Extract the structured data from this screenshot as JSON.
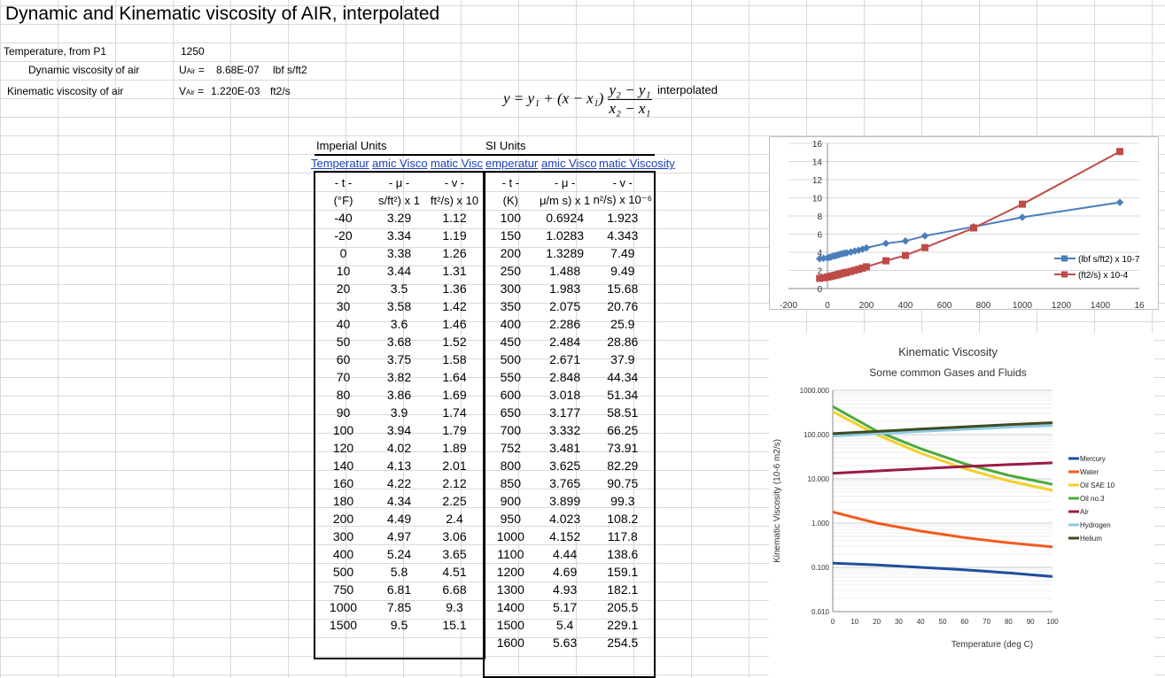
{
  "title": "Dynamic and Kinematic viscosity of AIR, interpolated",
  "inputs": {
    "temperature_label": "Temperature, from P1",
    "temperature_value": "1250",
    "dynamic_label": "Dynamic viscosity of air",
    "dynamic_symbol": "U",
    "dynamic_sub": "Air",
    "dynamic_value": "8.68E-07",
    "dynamic_unit": "lbf s/ft2",
    "kinematic_label": "Kinematic viscosity of air",
    "kinematic_symbol": "V",
    "kinematic_sub": "Air",
    "kinematic_value": "1.220E-03",
    "kinematic_unit": "ft2/s"
  },
  "formula": {
    "lhs": "y = y₁ + (x − x₁)",
    "num": "y₂ − y₁",
    "den": "x₂ − x₁",
    "note": "interpolated"
  },
  "imperial": {
    "title": "Imperial Units",
    "links": [
      "Temperatur",
      "amic Visco",
      "matic Visc"
    ],
    "symbols": [
      "- t -",
      "- μ -",
      "- v -"
    ],
    "units": [
      "(°F)",
      "s/ft²) x 1",
      "ft²/s) x 10"
    ],
    "rows": [
      [
        "-40",
        "3.29",
        "1.12"
      ],
      [
        "-20",
        "3.34",
        "1.19"
      ],
      [
        "0",
        "3.38",
        "1.26"
      ],
      [
        "10",
        "3.44",
        "1.31"
      ],
      [
        "20",
        "3.5",
        "1.36"
      ],
      [
        "30",
        "3.58",
        "1.42"
      ],
      [
        "40",
        "3.6",
        "1.46"
      ],
      [
        "50",
        "3.68",
        "1.52"
      ],
      [
        "60",
        "3.75",
        "1.58"
      ],
      [
        "70",
        "3.82",
        "1.64"
      ],
      [
        "80",
        "3.86",
        "1.69"
      ],
      [
        "90",
        "3.9",
        "1.74"
      ],
      [
        "100",
        "3.94",
        "1.79"
      ],
      [
        "120",
        "4.02",
        "1.89"
      ],
      [
        "140",
        "4.13",
        "2.01"
      ],
      [
        "160",
        "4.22",
        "2.12"
      ],
      [
        "180",
        "4.34",
        "2.25"
      ],
      [
        "200",
        "4.49",
        "2.4"
      ],
      [
        "300",
        "4.97",
        "3.06"
      ],
      [
        "400",
        "5.24",
        "3.65"
      ],
      [
        "500",
        "5.8",
        "4.51"
      ],
      [
        "750",
        "6.81",
        "6.68"
      ],
      [
        "1000",
        "7.85",
        "9.3"
      ],
      [
        "1500",
        "9.5",
        "15.1"
      ]
    ]
  },
  "si": {
    "title": "SI Units",
    "links": [
      "emperatur",
      "amic Visco",
      "matic Viscosity"
    ],
    "symbols": [
      "- t -",
      "- μ -",
      "- v -"
    ],
    "units": [
      "(K)",
      "μ/m s) x 1",
      "n²/s) x 10⁻⁶"
    ],
    "rows": [
      [
        "100",
        "0.6924",
        "1.923"
      ],
      [
        "150",
        "1.0283",
        "4.343"
      ],
      [
        "200",
        "1.3289",
        "7.49"
      ],
      [
        "250",
        "1.488",
        "9.49"
      ],
      [
        "300",
        "1.983",
        "15.68"
      ],
      [
        "350",
        "2.075",
        "20.76"
      ],
      [
        "400",
        "2.286",
        "25.9"
      ],
      [
        "450",
        "2.484",
        "28.86"
      ],
      [
        "500",
        "2.671",
        "37.9"
      ],
      [
        "550",
        "2.848",
        "44.34"
      ],
      [
        "600",
        "3.018",
        "51.34"
      ],
      [
        "650",
        "3.177",
        "58.51"
      ],
      [
        "700",
        "3.332",
        "66.25"
      ],
      [
        "752",
        "3.481",
        "73.91"
      ],
      [
        "800",
        "3.625",
        "82.29"
      ],
      [
        "850",
        "3.765",
        "90.75"
      ],
      [
        "900",
        "3.899",
        "99.3"
      ],
      [
        "950",
        "4.023",
        "108.2"
      ],
      [
        "1000",
        "4.152",
        "117.8"
      ],
      [
        "1100",
        "4.44",
        "138.6"
      ],
      [
        "1200",
        "4.69",
        "159.1"
      ],
      [
        "1300",
        "4.93",
        "182.1"
      ],
      [
        "1400",
        "5.17",
        "205.5"
      ],
      [
        "1500",
        "5.4",
        "229.1"
      ],
      [
        "1600",
        "5.63",
        "254.5"
      ]
    ]
  },
  "chart_data": [
    {
      "type": "line",
      "title": "",
      "xlim": [
        -200,
        1600
      ],
      "ylim": [
        0,
        16
      ],
      "xticks": [
        "-200",
        "0",
        "200",
        "400",
        "600",
        "800",
        "1000",
        "1200",
        "1400",
        "16"
      ],
      "yticks": [
        "0",
        "2",
        "4",
        "6",
        "8",
        "10",
        "12",
        "14",
        "16"
      ],
      "legend_position": "right",
      "series": [
        {
          "name": "(lbf s/ft2) x 10-7",
          "color": "#4a7ebb",
          "x": [
            -40,
            -20,
            0,
            10,
            20,
            30,
            40,
            50,
            60,
            70,
            80,
            90,
            100,
            120,
            140,
            160,
            180,
            200,
            300,
            400,
            500,
            750,
            1000,
            1500
          ],
          "y": [
            3.29,
            3.34,
            3.38,
            3.44,
            3.5,
            3.58,
            3.6,
            3.68,
            3.75,
            3.82,
            3.86,
            3.9,
            3.94,
            4.02,
            4.13,
            4.22,
            4.34,
            4.49,
            4.97,
            5.24,
            5.8,
            6.81,
            7.85,
            9.5
          ]
        },
        {
          "name": "(ft2/s) x 10-4",
          "color": "#be4b48",
          "x": [
            -40,
            -20,
            0,
            10,
            20,
            30,
            40,
            50,
            60,
            70,
            80,
            90,
            100,
            120,
            140,
            160,
            180,
            200,
            300,
            400,
            500,
            750,
            1000,
            1500
          ],
          "y": [
            1.12,
            1.19,
            1.26,
            1.31,
            1.36,
            1.42,
            1.46,
            1.52,
            1.58,
            1.64,
            1.69,
            1.74,
            1.79,
            1.89,
            2.01,
            2.12,
            2.25,
            2.4,
            3.06,
            3.65,
            4.51,
            6.68,
            9.3,
            15.1
          ]
        }
      ]
    },
    {
      "type": "line",
      "title": "Kinematic Viscosity",
      "subtitle": "Some common Gases and Fluids",
      "xlabel": "Temperature (deg C)",
      "ylabel": "Kinematic Viscosity (10-6 m2/s)",
      "ylog": true,
      "xlim": [
        0,
        100
      ],
      "ylim": [
        0.01,
        1000
      ],
      "xticks": [
        "0",
        "10",
        "20",
        "30",
        "40",
        "50",
        "60",
        "70",
        "80",
        "90",
        "100"
      ],
      "yticks": [
        "0.010",
        "0.100",
        "1.000",
        "10.000",
        "100.000",
        "1000.000"
      ],
      "legend_position": "right",
      "series": [
        {
          "name": "Mercury",
          "color": "#1f4e9c",
          "x": [
            0,
            20,
            40,
            60,
            80,
            100
          ],
          "y": [
            0.125,
            0.114,
            0.1,
            0.088,
            0.075,
            0.062
          ]
        },
        {
          "name": "Water",
          "color": "#f25b1f",
          "x": [
            0,
            20,
            40,
            60,
            80,
            100
          ],
          "y": [
            1.79,
            1.0,
            0.66,
            0.47,
            0.36,
            0.29
          ]
        },
        {
          "name": "Oil SAE 10",
          "color": "#f2d02a",
          "x": [
            0,
            20,
            40,
            60,
            80,
            100
          ],
          "y": [
            330,
            100,
            38,
            17,
            9,
            5.5
          ]
        },
        {
          "name": "Oil no.3",
          "color": "#4caa3c",
          "x": [
            0,
            20,
            40,
            60,
            80,
            100
          ],
          "y": [
            430,
            120,
            48,
            22,
            12,
            7.5
          ]
        },
        {
          "name": "Air",
          "color": "#9b1a47",
          "x": [
            0,
            20,
            40,
            60,
            80,
            100
          ],
          "y": [
            13.3,
            15.1,
            17,
            19,
            21,
            23
          ]
        },
        {
          "name": "Hydrogen",
          "color": "#8ecae6",
          "x": [
            0,
            20,
            40,
            60,
            80,
            100
          ],
          "y": [
            93,
            105,
            118,
            132,
            147,
            160
          ]
        },
        {
          "name": "Helium",
          "color": "#3e4d1f",
          "x": [
            0,
            20,
            40,
            60,
            80,
            100
          ],
          "y": [
            105,
            118,
            133,
            150,
            168,
            185
          ]
        }
      ]
    }
  ]
}
